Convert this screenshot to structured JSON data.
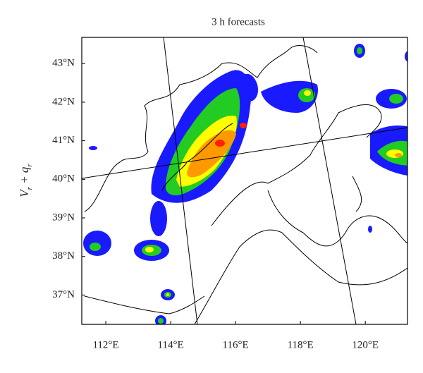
{
  "title": "3 h forecasts",
  "ylabel_parts": [
    "V",
    "r",
    " + q",
    "r"
  ],
  "lon_range": [
    111.26,
    121.3
  ],
  "lat_range": [
    36.24,
    43.68
  ],
  "lon_ticks": [
    {
      "value": 112,
      "label": "112°E"
    },
    {
      "value": 114,
      "label": "114°E"
    },
    {
      "value": 116,
      "label": "116°E"
    },
    {
      "value": 118,
      "label": "118°E"
    },
    {
      "value": 120,
      "label": "120°E"
    }
  ],
  "lat_ticks": [
    {
      "value": 37,
      "label": "37°N"
    },
    {
      "value": 38,
      "label": "38°N"
    },
    {
      "value": 39,
      "label": "39°N"
    },
    {
      "value": 40,
      "label": "40°N"
    },
    {
      "value": 41,
      "label": "41°N"
    },
    {
      "value": 42,
      "label": "42°N"
    },
    {
      "value": 43,
      "label": "43°N"
    }
  ]
}
